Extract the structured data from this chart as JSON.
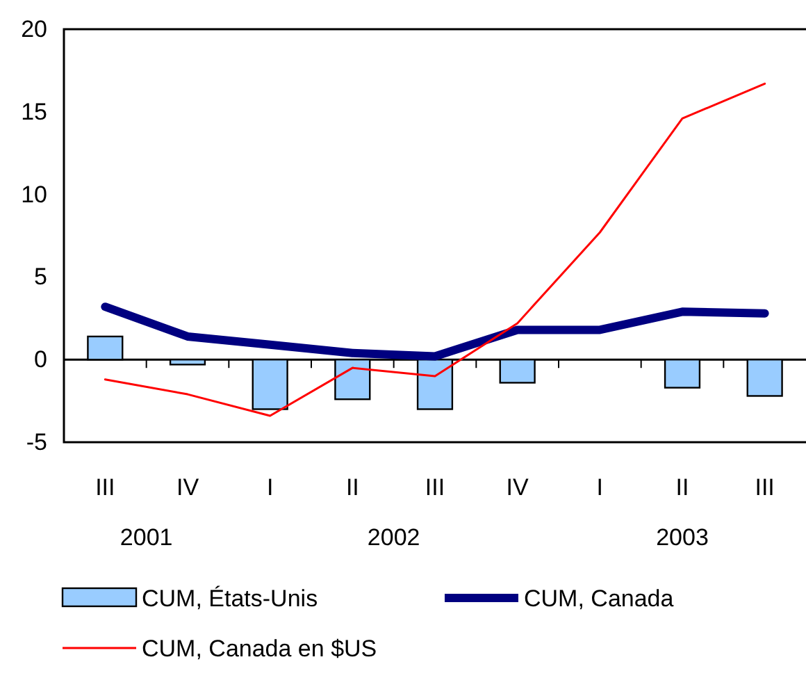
{
  "chart_data": {
    "type": "bar",
    "categories": [
      "III",
      "IV",
      "I",
      "II",
      "III",
      "IV",
      "I",
      "II",
      "III"
    ],
    "series": [
      {
        "name": "CUM, États-Unis",
        "color": "#99ccff",
        "values": [
          1.4,
          -0.3,
          -3.0,
          -2.4,
          -3.0,
          -1.4,
          null,
          -1.7,
          -2.2
        ]
      },
      {
        "name": "CUM, Canada",
        "type": "line",
        "color": "#000080",
        "values": [
          3.2,
          1.4,
          0.9,
          0.4,
          0.2,
          1.8,
          1.8,
          2.9,
          2.8
        ]
      },
      {
        "name": "CUM, Canada en $US",
        "type": "line",
        "color": "#ff0000",
        "values": [
          -1.2,
          -2.1,
          -3.4,
          -0.5,
          -1.0,
          2.2,
          7.7,
          14.6,
          16.7
        ]
      }
    ],
    "ylim": [
      -5,
      20
    ],
    "yticks": [
      -5,
      0,
      5,
      10,
      15,
      20
    ],
    "legend": "bottom",
    "annotations": [
      "2001",
      "2002",
      "2003"
    ]
  }
}
